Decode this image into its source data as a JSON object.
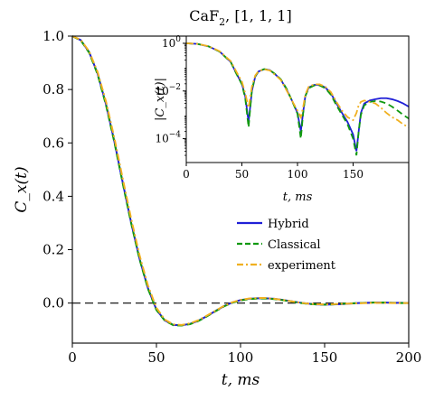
{
  "chart_data": [
    {
      "type": "line",
      "title_main": "CaF",
      "title_sub": "2",
      "title_rest": ", [1, 1, 1]",
      "xlabel": "t,  ms",
      "ylabel": "C_x(t)",
      "xlim": [
        0,
        200
      ],
      "ylim": [
        -0.15,
        1.0
      ],
      "xticks": [
        "0",
        "50",
        "100",
        "150",
        "200"
      ],
      "yticks": [
        "0.0",
        "0.2",
        "0.4",
        "0.6",
        "0.8",
        "1.0"
      ],
      "reference_line": 0,
      "legend_position": "center-right",
      "series": [
        {
          "name": "Hybrid",
          "color": "#1f1fd6",
          "style": "solid",
          "x": [
            0,
            5,
            10,
            15,
            20,
            25,
            30,
            35,
            40,
            45,
            50,
            55,
            60,
            65,
            70,
            75,
            80,
            85,
            90,
            95,
            100,
            105,
            110,
            115,
            120,
            125,
            130,
            135,
            140,
            145,
            150,
            155,
            160,
            165,
            170,
            175,
            180,
            185,
            190,
            195,
            200
          ],
          "y": [
            1.0,
            0.985,
            0.94,
            0.86,
            0.745,
            0.605,
            0.45,
            0.3,
            0.165,
            0.055,
            -0.025,
            -0.065,
            -0.082,
            -0.083,
            -0.078,
            -0.066,
            -0.049,
            -0.03,
            -0.012,
            0.002,
            0.011,
            0.016,
            0.018,
            0.018,
            0.016,
            0.012,
            0.007,
            0.002,
            -0.002,
            -0.005,
            -0.006,
            -0.005,
            -0.004,
            -0.002,
            0.0,
            0.001,
            0.002,
            0.002,
            0.001,
            0.001,
            0.0
          ]
        },
        {
          "name": "Classical",
          "color": "#119911",
          "style": "dashed",
          "x": [
            0,
            5,
            10,
            15,
            20,
            25,
            30,
            35,
            40,
            45,
            50,
            55,
            60,
            65,
            70,
            75,
            80,
            85,
            90,
            95,
            100,
            105,
            110,
            115,
            120,
            125,
            130,
            135,
            140,
            145,
            150,
            155,
            160,
            165,
            170,
            175,
            180,
            185,
            190,
            195,
            200
          ],
          "y": [
            1.0,
            0.984,
            0.938,
            0.857,
            0.742,
            0.602,
            0.447,
            0.298,
            0.163,
            0.053,
            -0.026,
            -0.066,
            -0.083,
            -0.084,
            -0.079,
            -0.067,
            -0.05,
            -0.031,
            -0.013,
            0.001,
            0.01,
            0.015,
            0.017,
            0.017,
            0.015,
            0.011,
            0.006,
            0.001,
            -0.003,
            -0.005,
            -0.006,
            -0.005,
            -0.003,
            -0.001,
            0.0,
            0.001,
            0.002,
            0.002,
            0.001,
            0.0,
            0.0
          ]
        },
        {
          "name": "experiment",
          "color": "#f0b020",
          "style": "dashdot",
          "x": [
            0,
            5,
            10,
            15,
            20,
            25,
            30,
            35,
            40,
            45,
            50,
            55,
            60,
            65,
            70,
            75,
            80,
            85,
            90,
            95,
            100,
            105,
            110,
            115,
            120,
            125,
            130,
            135,
            140,
            145,
            150,
            155,
            160,
            165,
            170,
            175,
            180,
            185,
            190,
            195,
            200
          ],
          "y": [
            1.0,
            0.986,
            0.943,
            0.866,
            0.755,
            0.618,
            0.465,
            0.315,
            0.178,
            0.065,
            -0.018,
            -0.062,
            -0.08,
            -0.082,
            -0.076,
            -0.064,
            -0.047,
            -0.029,
            -0.011,
            0.003,
            0.012,
            0.017,
            0.019,
            0.019,
            0.016,
            0.012,
            0.007,
            0.002,
            -0.002,
            -0.004,
            -0.005,
            -0.004,
            -0.003,
            -0.002,
            -0.001,
            0.0,
            0.001,
            0.001,
            0.0,
            0.0,
            0.0
          ]
        }
      ]
    },
    {
      "type": "line",
      "inset": true,
      "xlabel": "t,  ms",
      "ylabel": "|C_x(t)|",
      "xlim": [
        0,
        200
      ],
      "yscale": "log",
      "ylim": [
        1e-05,
        2.0
      ],
      "xticks": [
        "0",
        "50",
        "100",
        "150"
      ],
      "yticks_exponents": [
        0,
        -2,
        -4
      ],
      "series": [
        {
          "name": "Hybrid",
          "color": "#1f1fd6",
          "x": [
            0,
            10,
            20,
            30,
            40,
            45,
            50,
            53,
            56,
            59,
            62,
            65,
            70,
            75,
            80,
            85,
            90,
            95,
            100,
            103,
            105,
            107,
            110,
            115,
            120,
            125,
            130,
            135,
            140,
            145,
            150,
            153,
            155,
            157,
            160,
            165,
            170,
            175,
            180,
            185,
            190,
            195,
            200
          ],
          "y": [
            1.0,
            0.94,
            0.745,
            0.45,
            0.165,
            0.055,
            0.02,
            0.006,
            0.0005,
            0.01,
            0.04,
            0.066,
            0.082,
            0.075,
            0.05,
            0.03,
            0.012,
            0.004,
            0.0012,
            0.0002,
            0.0012,
            0.006,
            0.014,
            0.018,
            0.018,
            0.014,
            0.008,
            0.003,
            0.0012,
            0.0005,
            0.00015,
            3e-05,
            0.0002,
            0.0012,
            0.003,
            0.004,
            0.0045,
            0.005,
            0.005,
            0.0045,
            0.0038,
            0.003,
            0.0022
          ]
        },
        {
          "name": "Classical",
          "color": "#119911",
          "x": [
            0,
            10,
            20,
            30,
            40,
            45,
            50,
            53,
            56,
            59,
            62,
            65,
            70,
            75,
            80,
            85,
            90,
            95,
            100,
            103,
            105,
            107,
            110,
            115,
            120,
            125,
            130,
            135,
            140,
            145,
            150,
            153,
            155,
            157,
            160,
            165,
            170,
            175,
            180,
            185,
            190,
            195,
            200
          ],
          "y": [
            1.0,
            0.94,
            0.742,
            0.447,
            0.163,
            0.053,
            0.019,
            0.005,
            0.0003,
            0.011,
            0.042,
            0.067,
            0.083,
            0.076,
            0.051,
            0.031,
            0.013,
            0.004,
            0.0011,
            0.0001,
            0.0011,
            0.006,
            0.013,
            0.017,
            0.017,
            0.013,
            0.007,
            0.0025,
            0.001,
            0.0004,
            0.0001,
            2e-05,
            0.0002,
            0.001,
            0.0025,
            0.0035,
            0.0038,
            0.0036,
            0.003,
            0.0022,
            0.0015,
            0.001,
            0.0007
          ]
        },
        {
          "name": "experiment",
          "color": "#f0b020",
          "x": [
            0,
            10,
            20,
            30,
            40,
            45,
            50,
            53,
            56,
            59,
            62,
            65,
            70,
            75,
            80,
            85,
            90,
            95,
            100,
            103,
            105,
            107,
            110,
            115,
            120,
            125,
            130,
            135,
            140,
            145,
            150,
            153,
            155,
            157,
            160,
            165,
            170,
            175,
            180,
            185,
            190,
            195,
            200
          ],
          "y": [
            1.0,
            0.943,
            0.755,
            0.465,
            0.178,
            0.065,
            0.025,
            0.008,
            0.002,
            0.015,
            0.045,
            0.068,
            0.08,
            0.073,
            0.047,
            0.029,
            0.011,
            0.004,
            0.0015,
            0.0008,
            0.002,
            0.007,
            0.015,
            0.019,
            0.019,
            0.015,
            0.009,
            0.0035,
            0.0015,
            0.0008,
            0.0006,
            0.0012,
            0.0025,
            0.0035,
            0.004,
            0.0035,
            0.003,
            0.002,
            0.0012,
            0.0008,
            0.0006,
            0.0004,
            0.0003
          ]
        }
      ]
    }
  ]
}
